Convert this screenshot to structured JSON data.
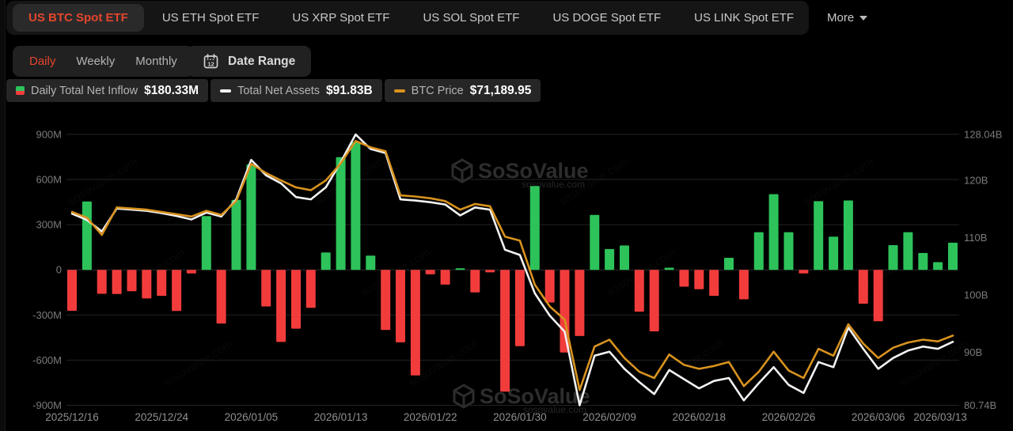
{
  "tabs": [
    {
      "label": "US BTC Spot ETF",
      "active": true
    },
    {
      "label": "US ETH Spot ETF",
      "active": false
    },
    {
      "label": "US XRP Spot ETF",
      "active": false
    },
    {
      "label": "US SOL Spot ETF",
      "active": false
    },
    {
      "label": "US DOGE Spot ETF",
      "active": false
    },
    {
      "label": "US LINK Spot ETF",
      "active": false
    }
  ],
  "more_label": "More",
  "frequency": {
    "options": [
      "Daily",
      "Weekly",
      "Monthly"
    ],
    "selected": "Daily"
  },
  "date_range_label": "Date Range",
  "legend": [
    {
      "id": "inflow",
      "label": "Daily Total Net Inflow",
      "value": "$180.33M"
    },
    {
      "id": "assets",
      "label": "Total Net Assets",
      "value": "$91.83B"
    },
    {
      "id": "btc",
      "label": "BTC Price",
      "value": "$71,189.95"
    }
  ],
  "watermark": {
    "brand": "SoSoValue",
    "domain": "sosovalue.com"
  },
  "colors": {
    "accent_red": "#e5462d",
    "bar_green": "#2dc35a",
    "bar_red": "#f23c3c",
    "line_assets": "#f2f2f2",
    "line_btc": "#d7921e",
    "grid": "#232323",
    "axis_text": "#7b7b7b",
    "x_label_text": "#909090",
    "watermark_text": "#2d2d2d"
  },
  "chart_data": {
    "type": "bar+line combo",
    "title": "US BTC Spot ETF daily flows vs total net assets and BTC price",
    "grid": true,
    "legend_position": "top-left",
    "x_ticks": [
      {
        "index": 0,
        "label": "2025/12/16"
      },
      {
        "index": 6,
        "label": "2025/12/24"
      },
      {
        "index": 12,
        "label": "2026/01/05"
      },
      {
        "index": 18,
        "label": "2026/01/13"
      },
      {
        "index": 24,
        "label": "2026/01/22"
      },
      {
        "index": 30,
        "label": "2026/01/30"
      },
      {
        "index": 36,
        "label": "2026/02/09"
      },
      {
        "index": 42,
        "label": "2026/02/18"
      },
      {
        "index": 48,
        "label": "2026/02/26"
      },
      {
        "index": 54,
        "label": "2026/03/06"
      },
      {
        "index": 59,
        "label": "2026/03/13"
      }
    ],
    "left_axis": {
      "title": "Daily Total Net Inflow",
      "unit": "M USD",
      "ticks": [
        "900M",
        "600M",
        "300M",
        "0",
        "-300M",
        "-600M",
        "-900M"
      ],
      "values": [
        900,
        600,
        300,
        0,
        -300,
        -600,
        -900
      ],
      "min": -900,
      "max": 900
    },
    "right_axis": {
      "title": "Total Net Assets",
      "unit": "B USD",
      "ticks": [
        "128.04B",
        "120B",
        "110B",
        "100B",
        "90B",
        "80.74B"
      ],
      "values": [
        128.04,
        120,
        110,
        100,
        90,
        80.74
      ],
      "min": 80.74,
      "max": 128.04
    },
    "series": [
      {
        "name": "Daily Total Net Inflow",
        "type": "bar",
        "unit": "M USD",
        "latest_display": "$180.33M",
        "values": [
          -272,
          454,
          -159,
          -161,
          -142,
          -190,
          -173,
          -273,
          -24,
          357,
          -357,
          465,
          700,
          -243,
          -479,
          -391,
          -252,
          115,
          748,
          849,
          94,
          -400,
          -482,
          -702,
          -30,
          -98,
          10,
          -150,
          -17,
          -809,
          -507,
          557,
          -217,
          -549,
          -440,
          365,
          138,
          162,
          -278,
          -409,
          14,
          -112,
          -129,
          -173,
          80,
          -196,
          250,
          503,
          250,
          -24,
          456,
          220,
          461,
          -225,
          -342,
          164,
          250,
          112,
          51,
          180.33
        ]
      },
      {
        "name": "Total Net Assets",
        "type": "line",
        "unit": "B USD",
        "axis": "right",
        "latest_display": "$91.83B",
        "values": [
          114.2,
          113.1,
          111.1,
          115.1,
          114.9,
          114.7,
          114.3,
          113.8,
          113.2,
          114.4,
          113.7,
          116.7,
          123.6,
          120.9,
          119.5,
          117.1,
          116.7,
          118.8,
          123.2,
          128.04,
          125.5,
          124.8,
          116.7,
          116.5,
          116.2,
          115.8,
          113.9,
          115.3,
          114.9,
          107.9,
          107.0,
          100.3,
          96.4,
          93.6,
          80.74,
          89.4,
          90.1,
          87.1,
          84.8,
          82.7,
          86.9,
          85.3,
          83.7,
          85.0,
          85.5,
          81.6,
          84.6,
          87.4,
          84.3,
          82.9,
          88.3,
          87.4,
          94.3,
          90.6,
          87.1,
          89.0,
          90.3,
          91.0,
          90.6,
          91.83
        ]
      },
      {
        "name": "BTC Price",
        "type": "line",
        "unit": "USD, plotted on right-axis scale",
        "latest_display": "$71,189.95",
        "values": [
          114.5,
          113.5,
          110.5,
          115.3,
          115.1,
          114.9,
          114.5,
          114.1,
          113.7,
          114.7,
          114.0,
          116.4,
          122.9,
          121.3,
          120.0,
          118.8,
          118.3,
          120.0,
          123.0,
          126.9,
          125.8,
          125.1,
          117.4,
          117.2,
          116.9,
          116.4,
          114.9,
          115.9,
          115.5,
          110.2,
          109.5,
          101.8,
          98.0,
          95.7,
          83.4,
          91.0,
          92.2,
          89.0,
          86.6,
          85.5,
          89.6,
          87.8,
          87.1,
          87.6,
          88.3,
          84.1,
          86.6,
          90.1,
          86.8,
          85.5,
          90.6,
          89.4,
          94.9,
          91.5,
          89.0,
          90.8,
          91.7,
          92.2,
          91.9,
          92.9
        ]
      }
    ]
  }
}
